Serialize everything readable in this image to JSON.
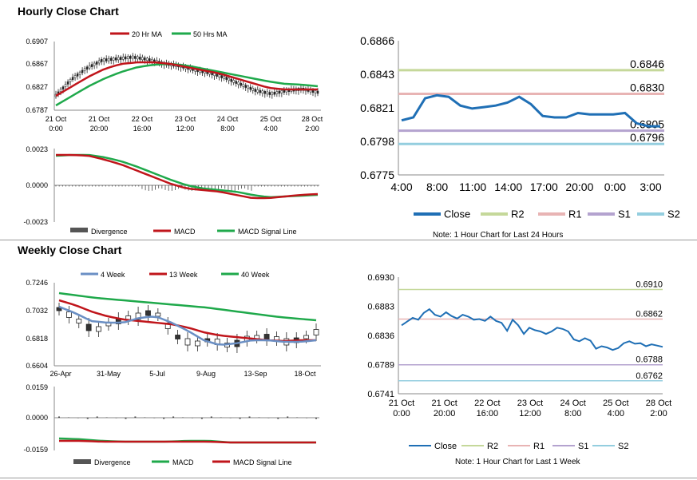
{
  "hourly": {
    "title": "Hourly Close Chart",
    "price_panel": {
      "legend": [
        {
          "name": "20 Hr MA",
          "color": "#c0151b"
        },
        {
          "name": "50 Hrs MA",
          "color": "#1fa94b"
        }
      ],
      "yticks": [
        "0.6907",
        "0.6867",
        "0.6827",
        "0.6787"
      ],
      "ylim": [
        0.6787,
        0.6907
      ],
      "xticks": [
        [
          "21 Oct",
          "0:00"
        ],
        [
          "21 Oct",
          "20:00"
        ],
        [
          "22 Oct",
          "16:00"
        ],
        [
          "23 Oct",
          "12:00"
        ],
        [
          "24 Oct",
          "8:00"
        ],
        [
          "25 Oct",
          "4:00"
        ],
        [
          "28 Oct",
          "2:00"
        ]
      ]
    },
    "macd_panel": {
      "yticks": [
        "0.0023",
        "0.0000",
        "-0.0023"
      ],
      "ylim": [
        -0.0023,
        0.0023
      ],
      "legend": [
        {
          "name": "Divergence",
          "color": "#555555"
        },
        {
          "name": "MACD",
          "color": "#c0151b"
        },
        {
          "name": "MACD Signal Line",
          "color": "#1fa94b"
        }
      ]
    }
  },
  "weekly": {
    "title": "Weekly Close Chart",
    "price_panel": {
      "legend": [
        {
          "name": "4 Week",
          "color": "#6a8fc4"
        },
        {
          "name": "13 Week",
          "color": "#c0151b"
        },
        {
          "name": "40 Week",
          "color": "#1fa94b"
        }
      ],
      "yticks": [
        "0.7246",
        "0.7032",
        "0.6818",
        "0.6604"
      ],
      "ylim": [
        0.6604,
        0.7246
      ],
      "xticks": [
        "26-Apr",
        "31-May",
        "5-Jul",
        "9-Aug",
        "13-Sep",
        "18-Oct"
      ]
    },
    "macd_panel": {
      "yticks": [
        "0.0159",
        "0.0000",
        "-0.0159"
      ],
      "ylim": [
        -0.0159,
        0.0159
      ],
      "legend": [
        {
          "name": "Divergence",
          "color": "#555555"
        },
        {
          "name": "MACD",
          "color": "#1fa94b"
        },
        {
          "name": "MACD Signal Line",
          "color": "#c0151b"
        }
      ]
    }
  },
  "chart_data": [
    {
      "type": "line",
      "id": "hourly-close-24h",
      "title": "1 Hour Chart for Last 24 Hours",
      "ylim": [
        0.6775,
        0.6866
      ],
      "yticks": [
        "0.6866",
        "0.6843",
        "0.6821",
        "0.6798",
        "0.6775"
      ],
      "xticks": [
        "4:00",
        "8:00",
        "11:00",
        "14:00",
        "17:00",
        "20:00",
        "0:00",
        "3:00"
      ],
      "series": [
        {
          "name": "Close",
          "color": "#1f6fb5",
          "values": [
            0.6812,
            0.6814,
            0.6827,
            0.6829,
            0.6828,
            0.6822,
            0.682,
            0.6821,
            0.6822,
            0.6824,
            0.6828,
            0.6823,
            0.6815,
            0.6814,
            0.6814,
            0.6817,
            0.6816,
            0.6816,
            0.6816,
            0.6817,
            0.681,
            0.6808,
            0.6808
          ]
        }
      ],
      "levels": [
        {
          "name": "R2",
          "value": 0.6846,
          "label": "0.6846",
          "color": "#c5d89a"
        },
        {
          "name": "R1",
          "value": 0.683,
          "label": "0.6830",
          "color": "#e8b4b4"
        },
        {
          "name": "S1",
          "value": 0.6805,
          "label": "0.6805",
          "color": "#b4a3cf"
        },
        {
          "name": "S2",
          "value": 0.6796,
          "label": "0.6796",
          "color": "#94cedf"
        }
      ],
      "legend": [
        "Close",
        "R2",
        "R1",
        "S1",
        "S2"
      ],
      "note": "Note: 1 Hour Chart for Last 24 Hours"
    },
    {
      "type": "line",
      "id": "hourly-close-1w",
      "title": "1 Hour Chart for Last 1 Week",
      "ylim": [
        0.6741,
        0.693
      ],
      "yticks": [
        "0.6930",
        "0.6883",
        "0.6836",
        "0.6789",
        "0.6741"
      ],
      "xticks": [
        [
          "21 Oct",
          "0:00"
        ],
        [
          "21 Oct",
          "20:00"
        ],
        [
          "22 Oct",
          "16:00"
        ],
        [
          "23 Oct",
          "12:00"
        ],
        [
          "24 Oct",
          "8:00"
        ],
        [
          "25 Oct",
          "4:00"
        ],
        [
          "28 Oct",
          "2:00"
        ]
      ],
      "series": [
        {
          "name": "Close",
          "color": "#1f6fb5",
          "values": [
            0.6852,
            0.6858,
            0.6864,
            0.6861,
            0.6872,
            0.6878,
            0.6869,
            0.6866,
            0.6873,
            0.6867,
            0.6863,
            0.6869,
            0.6866,
            0.6861,
            0.6862,
            0.6859,
            0.6866,
            0.6859,
            0.6856,
            0.6843,
            0.6861,
            0.6852,
            0.6838,
            0.6848,
            0.6844,
            0.6842,
            0.6838,
            0.6842,
            0.6848,
            0.6846,
            0.6842,
            0.6829,
            0.6826,
            0.6831,
            0.6827,
            0.6814,
            0.6818,
            0.6816,
            0.6812,
            0.6815,
            0.6823,
            0.6826,
            0.6822,
            0.6823,
            0.6818,
            0.6821,
            0.6819,
            0.6817
          ]
        }
      ],
      "levels": [
        {
          "name": "R2",
          "value": 0.691,
          "label": "0.6910",
          "color": "#c5d89a"
        },
        {
          "name": "R1",
          "value": 0.6862,
          "label": "0.6862",
          "color": "#e8b4b4"
        },
        {
          "name": "S1",
          "value": 0.6788,
          "label": "0.6788",
          "color": "#b4a3cf"
        },
        {
          "name": "S2",
          "value": 0.6762,
          "label": "0.6762",
          "color": "#94cedf"
        }
      ],
      "legend": [
        "Close",
        "R2",
        "R1",
        "S1",
        "S2"
      ],
      "note": "Note: 1 Hour Chart for Last 1 Week"
    }
  ]
}
